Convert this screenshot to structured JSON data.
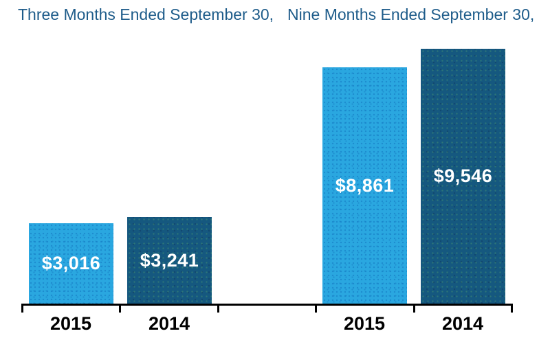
{
  "chart_data": {
    "type": "bar",
    "groups": [
      {
        "title": "Three Months Ended September 30,",
        "categories": [
          "2015",
          "2014"
        ],
        "bars": [
          {
            "label": "2015",
            "value": 3016,
            "value_label": "$3,016",
            "color": "light_blue"
          },
          {
            "label": "2014",
            "value": 3241,
            "value_label": "$3,241",
            "color": "dark_blue"
          }
        ]
      },
      {
        "title": "Nine Months Ended September 30,",
        "categories": [
          "2015",
          "2014"
        ],
        "bars": [
          {
            "label": "2015",
            "value": 8861,
            "value_label": "$8,861",
            "color": "light_blue"
          },
          {
            "label": "2014",
            "value": 9546,
            "value_label": "$9,546",
            "color": "dark_blue"
          }
        ]
      }
    ],
    "ylim": [
      0,
      9546
    ],
    "grid": false,
    "legend": "none",
    "value_labels_position": "centered-inside-bars",
    "colors": {
      "light_blue": "#2AA7E0",
      "dark_blue": "#15587F",
      "title_text": "#1E5C8A",
      "value_text": "#FFFFFF",
      "axis_text": "#000000",
      "axis_line": "#000000"
    }
  }
}
